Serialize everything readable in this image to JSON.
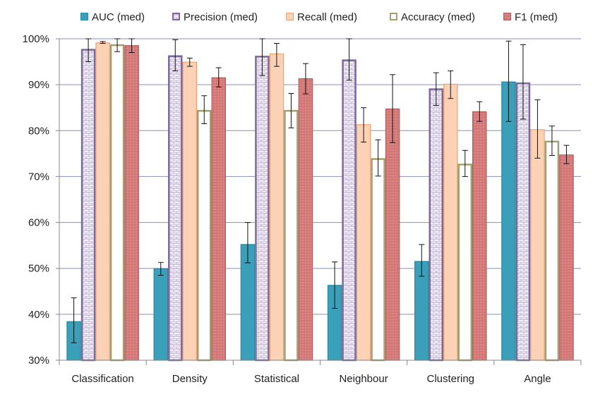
{
  "chart_data": {
    "type": "bar",
    "categories": [
      "Classification",
      "Density",
      "Statistical",
      "Neighbour",
      "Clustering",
      "Angle"
    ],
    "ylim": [
      30,
      100
    ],
    "yticks": [
      "30%",
      "40%",
      "50%",
      "60%",
      "70%",
      "80%",
      "90%",
      "100%"
    ],
    "ytick_values": [
      30,
      40,
      50,
      60,
      70,
      80,
      90,
      100
    ],
    "grid": true,
    "legend_position": "top",
    "series": [
      {
        "name": "AUC (med)",
        "color": "#3a9fb8",
        "stroke": "#2a8aa3",
        "pattern": "solid",
        "values": [
          38.5,
          50.0,
          55.3,
          46.4,
          51.6,
          90.7
        ],
        "err_low": [
          33.8,
          48.5,
          51.2,
          41.3,
          48.3,
          82.0
        ],
        "err_high": [
          43.6,
          51.3,
          60.0,
          51.4,
          55.2,
          99.5
        ]
      },
      {
        "name": "Precision (med)",
        "color": "#ece6f0",
        "stroke": "#7b6a9a",
        "pattern": "brick",
        "values": [
          97.8,
          96.4,
          96.3,
          95.5,
          89.2,
          90.5
        ],
        "err_low": [
          95.0,
          93.0,
          92.0,
          91.0,
          85.5,
          82.5
        ],
        "err_high": [
          100.0,
          99.8,
          100.0,
          100.0,
          92.6,
          98.7
        ]
      },
      {
        "name": "Recall (med)",
        "color": "#fcd2b6",
        "stroke": "#f0a070",
        "pattern": "solid",
        "values": [
          99.2,
          95.0,
          96.8,
          81.4,
          90.2,
          80.3
        ],
        "err_low": [
          99.0,
          94.0,
          94.0,
          77.5,
          87.0,
          74.0
        ],
        "err_high": [
          99.4,
          95.8,
          99.0,
          85.0,
          93.0,
          86.7
        ]
      },
      {
        "name": "Accuracy (med)",
        "color": "#ffffff",
        "stroke": "#a0a070",
        "pattern": "outline",
        "values": [
          98.8,
          84.5,
          84.5,
          74.0,
          72.8,
          77.8
        ],
        "err_low": [
          97.2,
          81.5,
          80.6,
          70.1,
          70.0,
          74.6
        ],
        "err_high": [
          100.0,
          87.6,
          88.1,
          78.0,
          75.7,
          81.0
        ]
      },
      {
        "name": "F1 (med)",
        "color": "#d98080",
        "stroke": "#b25d5d",
        "pattern": "dotted",
        "values": [
          98.6,
          91.6,
          91.4,
          84.8,
          84.2,
          74.8
        ],
        "err_low": [
          97.0,
          89.5,
          88.0,
          77.4,
          82.0,
          72.8
        ],
        "err_high": [
          100.0,
          93.7,
          94.6,
          92.2,
          86.3,
          76.8
        ]
      }
    ]
  }
}
